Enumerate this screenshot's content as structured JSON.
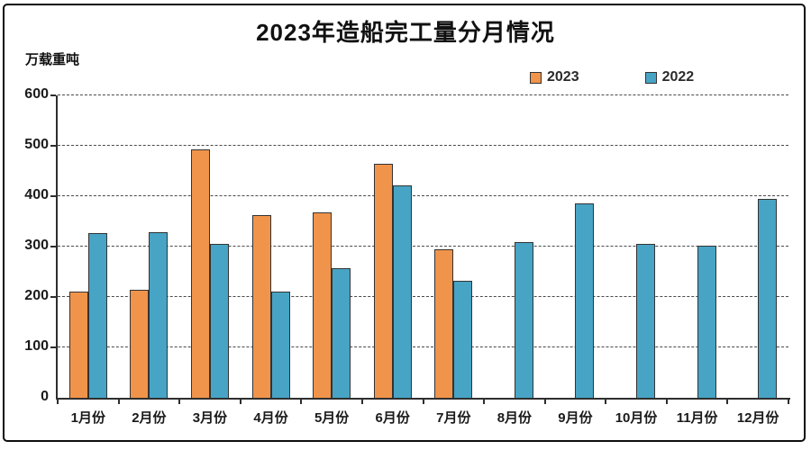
{
  "title": "2023年造船完工量分月情况",
  "unit_label": "万载重吨",
  "colors": {
    "series_2023": "#F0944B",
    "series_2022": "#47A4C5",
    "bar_border": "#333333",
    "gridline": "#4a4a4a",
    "axis": "#2e2e2e",
    "frame_border": "#0d0d0d",
    "text": "#1a1a1a"
  },
  "chart_data": {
    "type": "bar",
    "title": "2023年造船完工量分月情况",
    "xlabel": "",
    "ylabel": "万载重吨",
    "ylim": [
      0,
      600
    ],
    "yticks": [
      0,
      100,
      200,
      300,
      400,
      500,
      600
    ],
    "grid": "horizontal-dashed",
    "legend_position": "top-right",
    "categories": [
      "1月份",
      "2月份",
      "3月份",
      "4月份",
      "5月份",
      "6月份",
      "7月份",
      "8月份",
      "9月份",
      "10月份",
      "11月份",
      "12月份"
    ],
    "series": [
      {
        "name": "2023",
        "color": "#F0944B",
        "values": [
          211,
          214,
          493,
          363,
          367,
          465,
          294,
          null,
          null,
          null,
          null,
          null
        ]
      },
      {
        "name": "2022",
        "color": "#47A4C5",
        "values": [
          326,
          329,
          306,
          211,
          257,
          421,
          233,
          309,
          386,
          306,
          301,
          395
        ]
      }
    ]
  }
}
